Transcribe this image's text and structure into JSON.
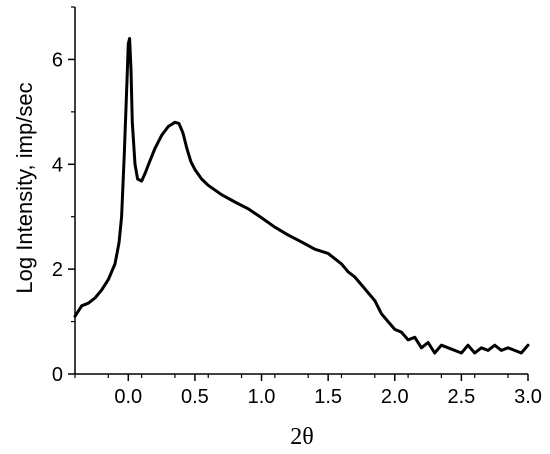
{
  "chart_data": {
    "type": "line",
    "title": "",
    "xlabel": "2θ",
    "ylabel": "Log Intensity, imp/sec",
    "xlim": [
      -0.4,
      3.0
    ],
    "ylim": [
      0,
      7
    ],
    "grid": false,
    "legend": "none",
    "line_color": "#000000",
    "x_ticks": [
      {
        "value": 0.0,
        "label": "0.0"
      },
      {
        "value": 0.5,
        "label": "0.5"
      },
      {
        "value": 1.0,
        "label": "1.0"
      },
      {
        "value": 1.5,
        "label": "1.5"
      },
      {
        "value": 2.0,
        "label": "2.0"
      },
      {
        "value": 2.5,
        "label": "2.5"
      },
      {
        "value": 3.0,
        "label": "3.0"
      }
    ],
    "y_ticks": [
      {
        "value": 0,
        "label": "0"
      },
      {
        "value": 2,
        "label": "2"
      },
      {
        "value": 4,
        "label": "4"
      },
      {
        "value": 6,
        "label": "6"
      }
    ],
    "series": [
      {
        "x": [
          -0.4,
          -0.35,
          -0.3,
          -0.25,
          -0.2,
          -0.15,
          -0.1,
          -0.07,
          -0.05,
          -0.03,
          -0.01,
          0.0,
          0.01,
          0.02,
          0.03,
          0.05,
          0.07,
          0.1,
          0.13,
          0.16,
          0.2,
          0.25,
          0.3,
          0.35,
          0.38,
          0.41,
          0.44,
          0.47,
          0.5,
          0.55,
          0.6,
          0.7,
          0.8,
          0.9,
          1.0,
          1.1,
          1.2,
          1.3,
          1.4,
          1.5,
          1.55,
          1.6,
          1.65,
          1.7,
          1.75,
          1.8,
          1.85,
          1.9,
          1.95,
          2.0,
          2.05,
          2.1,
          2.15,
          2.2,
          2.25,
          2.3,
          2.35,
          2.4,
          2.45,
          2.5,
          2.55,
          2.6,
          2.65,
          2.7,
          2.75,
          2.8,
          2.85,
          2.9,
          2.95,
          3.0
        ],
        "y": [
          1.1,
          1.3,
          1.35,
          1.45,
          1.6,
          1.8,
          2.1,
          2.5,
          3.0,
          4.2,
          5.6,
          6.3,
          6.4,
          5.8,
          4.8,
          4.0,
          3.72,
          3.68,
          3.85,
          4.05,
          4.3,
          4.55,
          4.72,
          4.8,
          4.78,
          4.6,
          4.3,
          4.05,
          3.9,
          3.72,
          3.6,
          3.42,
          3.28,
          3.15,
          2.98,
          2.8,
          2.65,
          2.52,
          2.38,
          2.3,
          2.2,
          2.1,
          1.95,
          1.85,
          1.7,
          1.55,
          1.4,
          1.15,
          1.0,
          0.85,
          0.8,
          0.65,
          0.7,
          0.5,
          0.6,
          0.4,
          0.55,
          0.5,
          0.45,
          0.4,
          0.55,
          0.4,
          0.5,
          0.45,
          0.55,
          0.45,
          0.5,
          0.45,
          0.4,
          0.55
        ]
      }
    ]
  }
}
